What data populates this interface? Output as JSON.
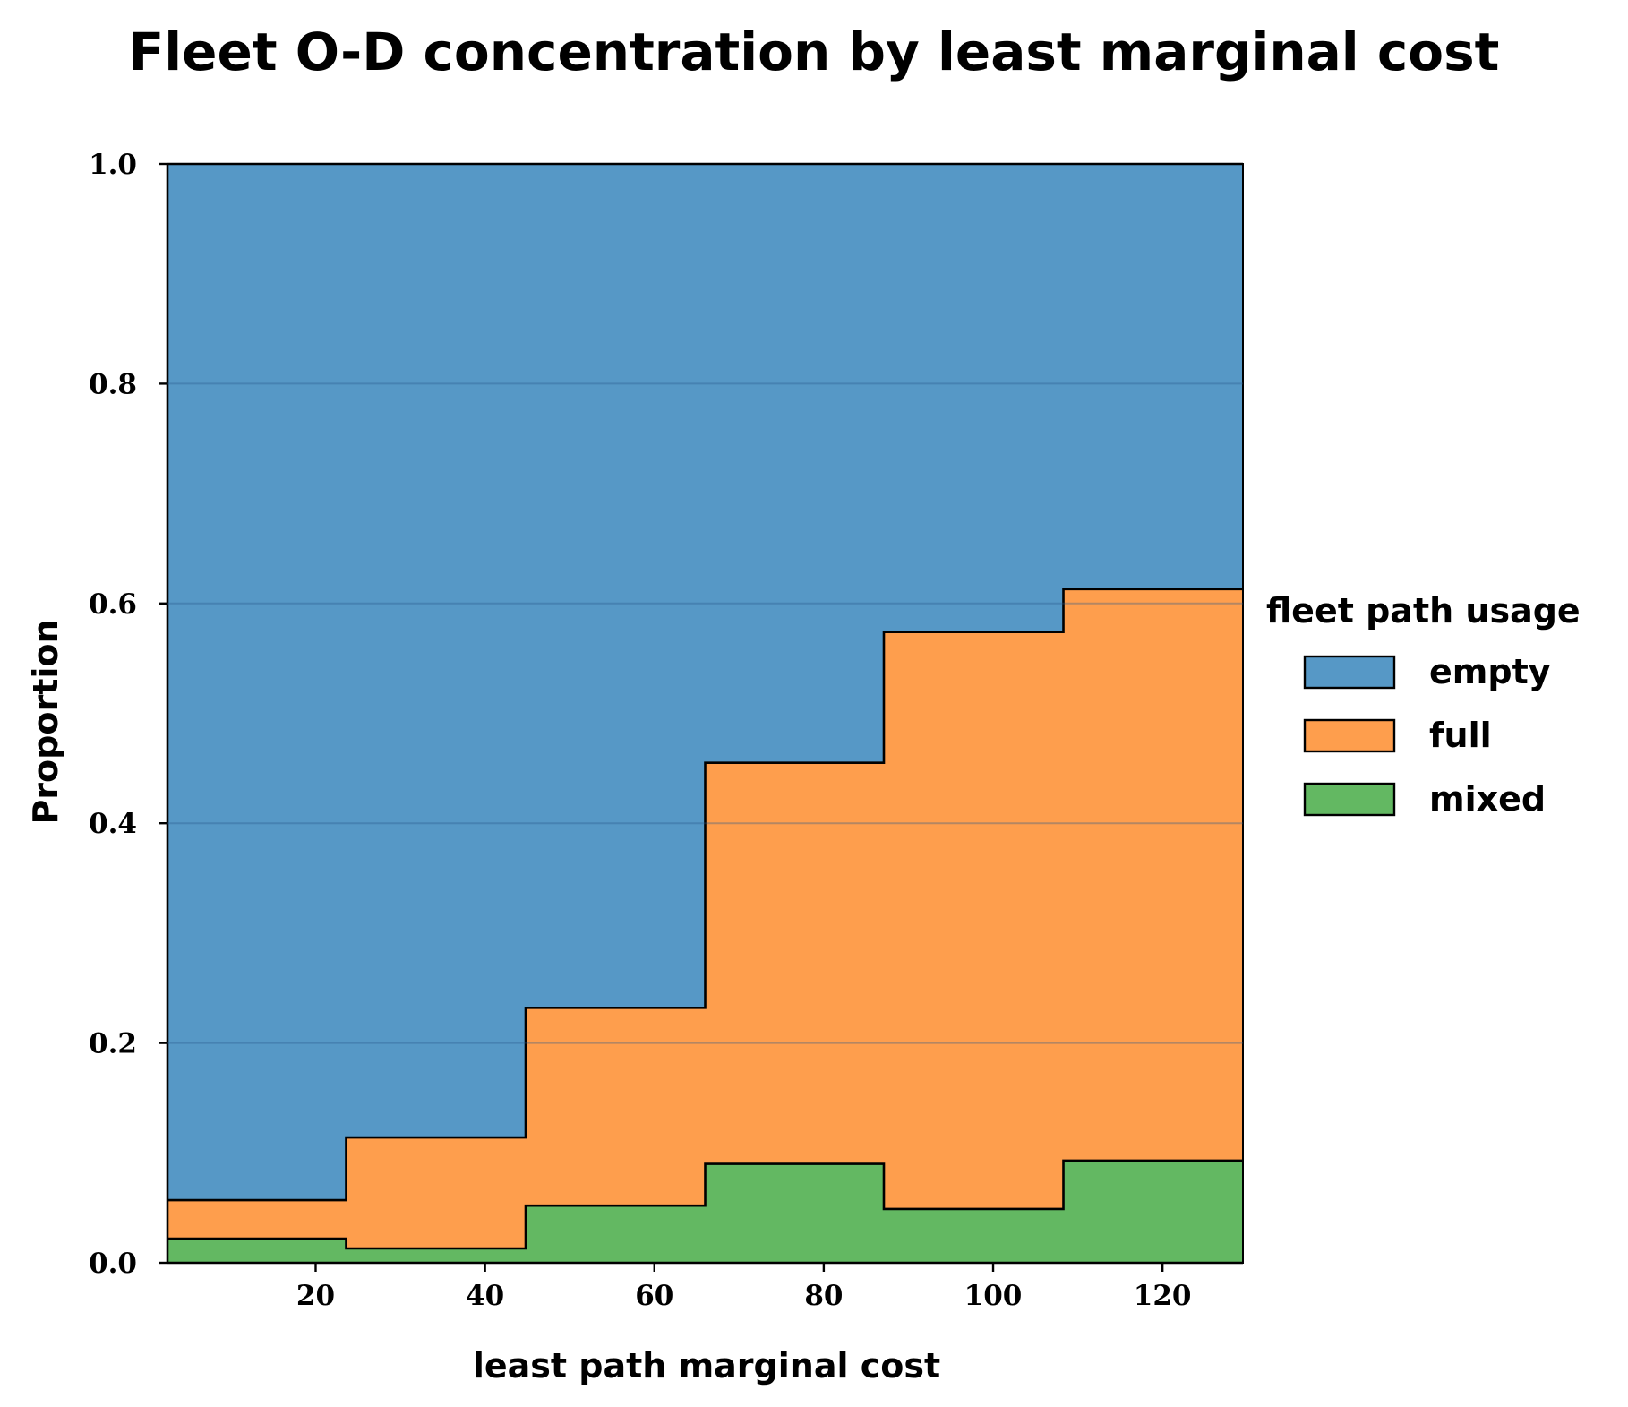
{
  "chart_data": {
    "type": "area",
    "subtype": "stacked-step-histogram-proportion",
    "title": "Fleet O-D concentration by least marginal cost",
    "xlabel": "least path marginal cost",
    "ylabel": "Proportion",
    "xlim": [
      2.5,
      129.5
    ],
    "ylim": [
      0,
      1.0
    ],
    "x_ticks": [
      20,
      40,
      60,
      80,
      100,
      120
    ],
    "y_ticks": [
      0.0,
      0.2,
      0.4,
      0.6,
      0.8,
      1.0
    ],
    "x_tick_labels": [
      "20",
      "40",
      "60",
      "80",
      "100",
      "120"
    ],
    "y_tick_labels": [
      "0.0",
      "0.2",
      "0.4",
      "0.6",
      "0.8",
      "1.0"
    ],
    "grid": "horizontal",
    "bin_edges": [
      2.5,
      23.6,
      44.8,
      66.0,
      87.1,
      108.3,
      129.5
    ],
    "series": [
      {
        "name": "mixed",
        "color": "#63b862",
        "values": [
          0.022,
          0.013,
          0.052,
          0.09,
          0.049,
          0.093
        ]
      },
      {
        "name": "full",
        "color": "#fe9e4d",
        "values": [
          0.035,
          0.101,
          0.18,
          0.365,
          0.525,
          0.52
        ]
      },
      {
        "name": "empty",
        "color": "#5698c6",
        "values": [
          0.943,
          0.886,
          0.768,
          0.545,
          0.426,
          0.387
        ]
      }
    ],
    "legend": {
      "title": "fleet path usage",
      "position": "right",
      "order": [
        "empty",
        "full",
        "mixed"
      ]
    }
  }
}
